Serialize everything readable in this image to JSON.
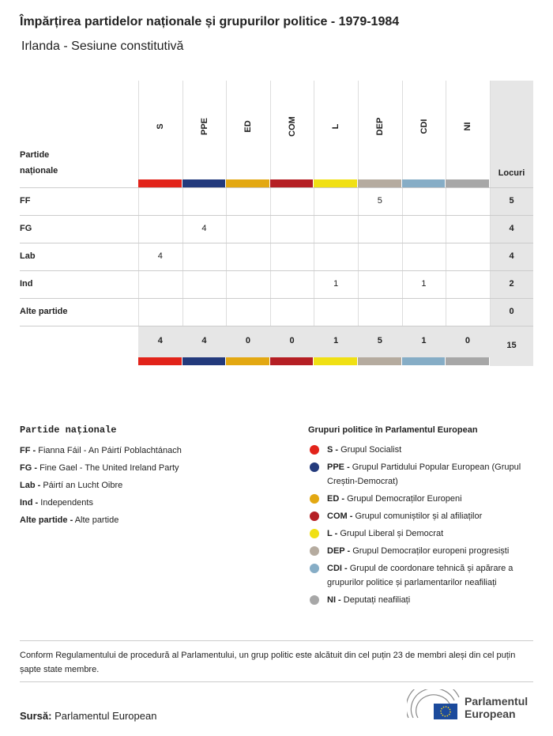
{
  "header": {
    "title": "Împărțirea partidelor naționale și grupurilor politice - 1979-1984",
    "subtitle": "Irlanda - Sesiune constitutivă"
  },
  "table": {
    "corner_label": "Partide naționale",
    "total_label": "Locuri",
    "groups": [
      {
        "code": "S",
        "color": "#e2231a"
      },
      {
        "code": "PPE",
        "color": "#233a7c"
      },
      {
        "code": "ED",
        "color": "#e3a812"
      },
      {
        "code": "COM",
        "color": "#b51f24"
      },
      {
        "code": "L",
        "color": "#f0e014"
      },
      {
        "code": "DEP",
        "color": "#b5ab9f"
      },
      {
        "code": "CDI",
        "color": "#86adc6"
      },
      {
        "code": "NI",
        "color": "#a7a7a7"
      }
    ],
    "rows": [
      {
        "party": "FF",
        "cells": [
          null,
          null,
          null,
          null,
          null,
          5,
          null,
          null
        ],
        "total": 5
      },
      {
        "party": "FG",
        "cells": [
          null,
          4,
          null,
          null,
          null,
          null,
          null,
          null
        ],
        "total": 4
      },
      {
        "party": "Lab",
        "cells": [
          4,
          null,
          null,
          null,
          null,
          null,
          null,
          null
        ],
        "total": 4
      },
      {
        "party": "Ind",
        "cells": [
          null,
          null,
          null,
          null,
          1,
          null,
          1,
          null
        ],
        "total": 2
      },
      {
        "party": "Alte partide",
        "cells": [
          null,
          null,
          null,
          null,
          null,
          null,
          null,
          null
        ],
        "total": 0
      }
    ],
    "totals": [
      4,
      4,
      0,
      0,
      1,
      5,
      1,
      0
    ],
    "grand_total": 15
  },
  "national_legend": {
    "heading": "Partide naționale",
    "items": [
      {
        "label": "FF -",
        "name": "Fianna Fáil - An Páirtí Poblachtánach"
      },
      {
        "label": "FG -",
        "name": "Fine Gael - The United Ireland Party"
      },
      {
        "label": "Lab -",
        "name": "Páirtí an Lucht Oibre"
      },
      {
        "label": "Ind -",
        "name": "Independents"
      },
      {
        "label": "Alte partide -",
        "name": "Alte partide"
      }
    ]
  },
  "group_legend": {
    "heading": "Grupuri politice în Parlamentul European",
    "items": [
      {
        "label": "S -",
        "name": "Grupul Socialist"
      },
      {
        "label": "PPE -",
        "name": "Grupul Partidului Popular European (Grupul Creștin-Democrat)"
      },
      {
        "label": "ED -",
        "name": "Grupul Democraților Europeni"
      },
      {
        "label": "COM -",
        "name": "Grupul comuniștilor și al afiliaților"
      },
      {
        "label": "L -",
        "name": "Grupul Liberal și Democrat"
      },
      {
        "label": "DEP -",
        "name": "Grupul Democraților europeni progresiști"
      },
      {
        "label": "CDI -",
        "name": "Grupul de coordonare tehnică și apărare a grupurilor politice și parlamentarilor neafiliați"
      },
      {
        "label": "NI -",
        "name": "Deputați neafiliați"
      }
    ]
  },
  "note": "Conform Regulamentului de procedură al Parlamentului, un grup politic este alcătuit din cel puțin 23 de membri aleși din cel puțin șapte state membre.",
  "source": {
    "label": "Sursă:",
    "text": "Parlamentul European"
  },
  "logo": {
    "line1": "Parlamentul",
    "line2": "European"
  }
}
